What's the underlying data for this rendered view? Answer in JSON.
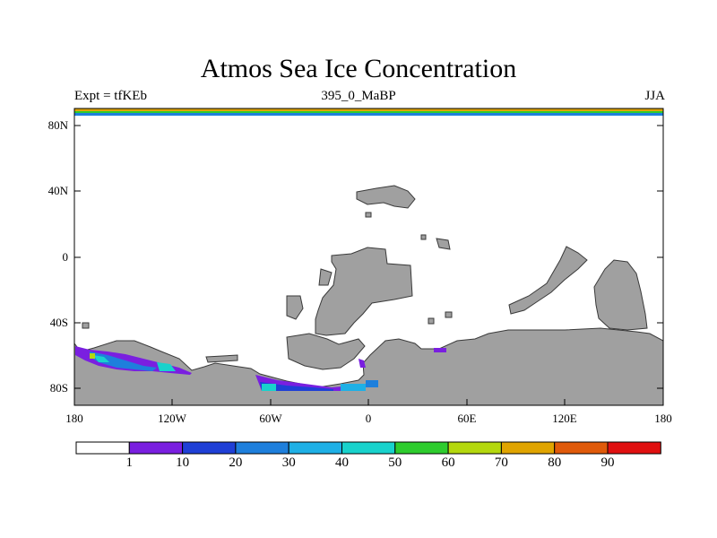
{
  "title": "Atmos Sea Ice Concentration",
  "subtitle_left": "Expt = tfKEb",
  "subtitle_center": "395_0_MaBP",
  "subtitle_right": "JJA",
  "lat_labels": [
    "80N",
    "40N",
    "0",
    "40S",
    "80S"
  ],
  "lon_labels": [
    "180",
    "120W",
    "60W",
    "0",
    "60E",
    "120E",
    "180"
  ],
  "colorbar": {
    "labels": [
      "1",
      "10",
      "20",
      "30",
      "40",
      "50",
      "60",
      "70",
      "80",
      "90"
    ],
    "colors": [
      "#ffffff",
      "#7a1fe0",
      "#1f3fd6",
      "#1e7fdc",
      "#1eb0e6",
      "#18d2cc",
      "#2ecc2e",
      "#b4d80e",
      "#e0a400",
      "#e05a0a",
      "#e01010"
    ]
  },
  "colors": {
    "land": "#a0a0a0",
    "land_edge": "#3a3a3a"
  }
}
